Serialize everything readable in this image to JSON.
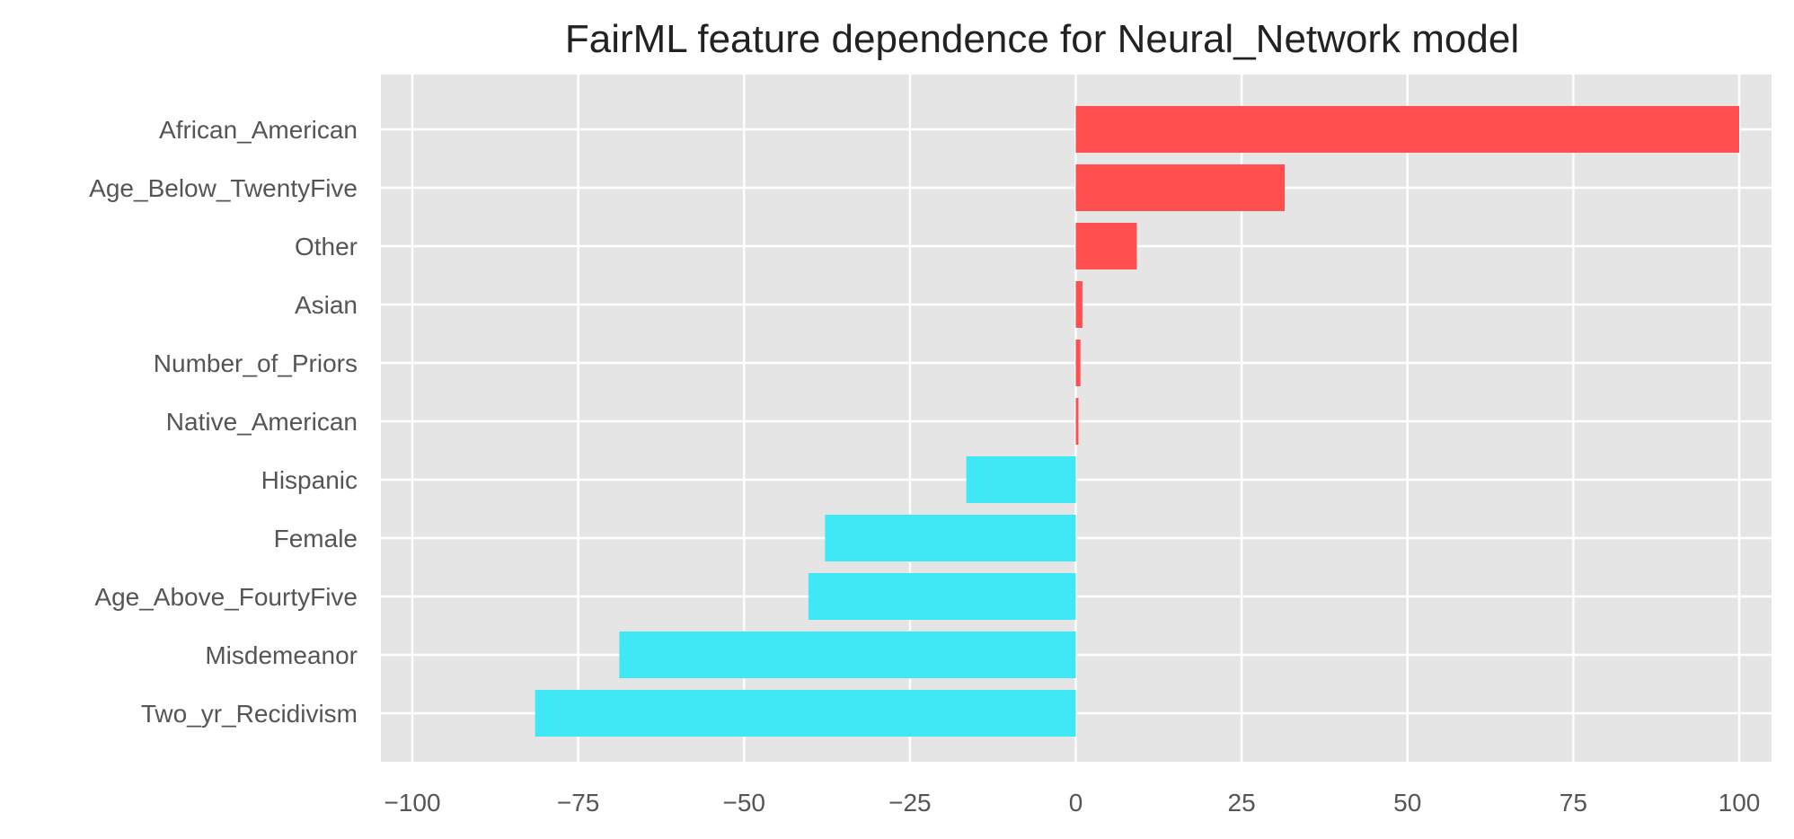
{
  "chart_data": {
    "type": "bar",
    "orientation": "horizontal",
    "title": "FairML feature dependence for Neural_Network model",
    "xlabel": "",
    "ylabel": "",
    "categories": [
      "African_American",
      "Age_Below_TwentyFive",
      "Other",
      "Asian",
      "Number_of_Priors",
      "Native_American",
      "Hispanic",
      "Female",
      "Age_Above_FourtyFive",
      "Misdemeanor",
      "Two_yr_Recidivism"
    ],
    "values": [
      100,
      31.5,
      9.2,
      1.0,
      0.7,
      0.4,
      -16.5,
      -37.8,
      -40.3,
      -68.8,
      -81.5
    ],
    "xlim": [
      -105,
      105
    ],
    "xticks": [
      -100,
      -75,
      -50,
      -25,
      0,
      25,
      50,
      75,
      100
    ],
    "xtick_labels": [
      "−100",
      "−75",
      "−50",
      "−25",
      "0",
      "25",
      "50",
      "75",
      "100"
    ],
    "grid": true,
    "style": "ggplot",
    "colors": {
      "positive": "#ff4f4f",
      "negative": "#3ee8f4",
      "background": "#e5e5e5",
      "grid": "#ffffff"
    }
  }
}
